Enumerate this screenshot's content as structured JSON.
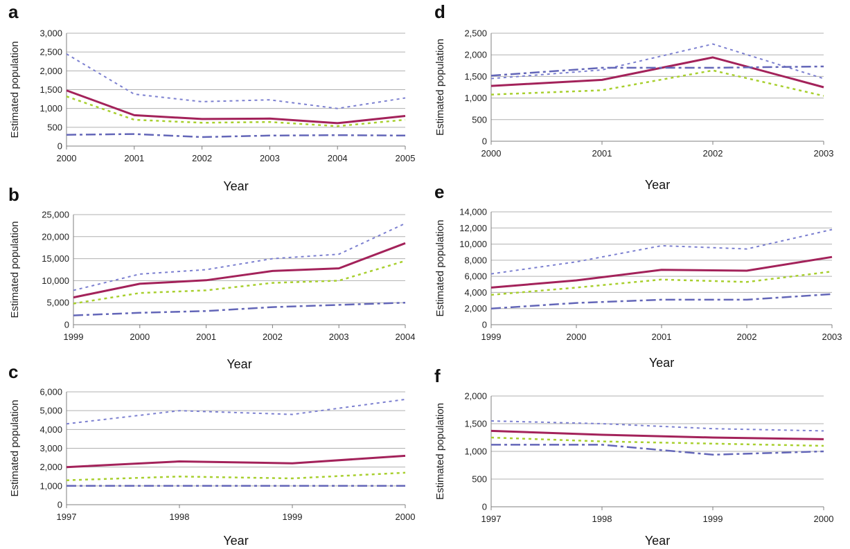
{
  "chart_data": [
    {
      "panel": "a",
      "type": "line",
      "xlabel": "Year",
      "ylabel": "Estimated population",
      "categories": [
        "2000",
        "2001",
        "2002",
        "2003",
        "2004",
        "2005"
      ],
      "ylim": [
        0,
        3000
      ],
      "yticks": [
        "0",
        "500",
        "1,000",
        "1,500",
        "2,000",
        "2,500",
        "3,000"
      ],
      "grid": true,
      "series": [
        {
          "style": "upper",
          "values": [
            2450,
            1380,
            1180,
            1230,
            1000,
            1280
          ]
        },
        {
          "style": "estimate",
          "values": [
            1480,
            820,
            720,
            730,
            610,
            800
          ]
        },
        {
          "style": "lower",
          "values": [
            1320,
            700,
            620,
            640,
            530,
            700
          ]
        },
        {
          "style": "other",
          "values": [
            300,
            320,
            240,
            280,
            290,
            280
          ]
        }
      ]
    },
    {
      "panel": "b",
      "type": "line",
      "xlabel": "Year",
      "ylabel": "Estimated population",
      "categories": [
        "1999",
        "2000",
        "2001",
        "2002",
        "2003",
        "2004"
      ],
      "ylim": [
        0,
        25000
      ],
      "yticks": [
        "0",
        "5,000",
        "10,000",
        "15,000",
        "20,000",
        "25,000"
      ],
      "grid": true,
      "series": [
        {
          "style": "upper",
          "values": [
            7800,
            11500,
            12500,
            15000,
            16000,
            23000
          ]
        },
        {
          "style": "estimate",
          "values": [
            6200,
            9300,
            10100,
            12200,
            12800,
            18500
          ]
        },
        {
          "style": "lower",
          "values": [
            4800,
            7200,
            7800,
            9500,
            10000,
            14500
          ]
        },
        {
          "style": "other",
          "values": [
            2100,
            2700,
            3100,
            4000,
            4500,
            5000
          ]
        }
      ]
    },
    {
      "panel": "c",
      "type": "line",
      "xlabel": "Year",
      "ylabel": "Estimated population",
      "categories": [
        "1997",
        "1998",
        "1999",
        "2000"
      ],
      "ylim": [
        0,
        6000
      ],
      "yticks": [
        "0",
        "1,000",
        "2,000",
        "3,000",
        "4,000",
        "5,000",
        "6,000"
      ],
      "grid": true,
      "series": [
        {
          "style": "upper",
          "values": [
            4300,
            5000,
            4800,
            5600
          ]
        },
        {
          "style": "estimate",
          "values": [
            2000,
            2300,
            2200,
            2600
          ]
        },
        {
          "style": "lower",
          "values": [
            1300,
            1500,
            1400,
            1700
          ]
        },
        {
          "style": "other",
          "values": [
            1000,
            1000,
            1000,
            1000
          ]
        }
      ]
    },
    {
      "panel": "d",
      "type": "line",
      "xlabel": "Year",
      "ylabel": "Estimated population",
      "categories": [
        "2000",
        "2001",
        "2002",
        "2003"
      ],
      "ylim": [
        0,
        2500
      ],
      "yticks": [
        "0",
        "500",
        "1,000",
        "1,500",
        "2,000",
        "2,500"
      ],
      "grid": true,
      "series": [
        {
          "style": "upper",
          "values": [
            1450,
            1650,
            2250,
            1450
          ]
        },
        {
          "style": "estimate",
          "values": [
            1280,
            1420,
            1940,
            1250
          ]
        },
        {
          "style": "lower",
          "values": [
            1080,
            1180,
            1640,
            1050
          ]
        },
        {
          "style": "other",
          "values": [
            1520,
            1700,
            1700,
            1730
          ]
        }
      ]
    },
    {
      "panel": "e",
      "type": "line",
      "xlabel": "Year",
      "ylabel": "Estimated population",
      "categories": [
        "1999",
        "2000",
        "2001",
        "2002",
        "2003"
      ],
      "ylim": [
        0,
        14000
      ],
      "yticks": [
        "0",
        "2,000",
        "4,000",
        "6,000",
        "8,000",
        "10,000",
        "12,000",
        "14,000"
      ],
      "grid": true,
      "series": [
        {
          "style": "upper",
          "values": [
            6300,
            7800,
            9800,
            9400,
            11800
          ]
        },
        {
          "style": "estimate",
          "values": [
            4600,
            5500,
            6800,
            6700,
            8400
          ]
        },
        {
          "style": "lower",
          "values": [
            3700,
            4600,
            5600,
            5300,
            6600
          ]
        },
        {
          "style": "other",
          "values": [
            2000,
            2700,
            3100,
            3100,
            3800
          ]
        }
      ]
    },
    {
      "panel": "f",
      "type": "line",
      "xlabel": "Year",
      "ylabel": "Estimated population",
      "categories": [
        "1997",
        "1998",
        "1999",
        "2000"
      ],
      "ylim": [
        0,
        2000
      ],
      "yticks": [
        "0",
        "500",
        "1,000",
        "1,500",
        "2,000"
      ],
      "grid": true,
      "series": [
        {
          "style": "upper",
          "values": [
            1550,
            1500,
            1410,
            1370
          ]
        },
        {
          "style": "estimate",
          "values": [
            1370,
            1300,
            1250,
            1220
          ]
        },
        {
          "style": "lower",
          "values": [
            1250,
            1180,
            1140,
            1100
          ]
        },
        {
          "style": "other",
          "values": [
            1120,
            1120,
            940,
            1000
          ]
        }
      ]
    }
  ],
  "line_styles": {
    "upper": {
      "color": "#7b7fd0",
      "width": 2,
      "dash": "4,5"
    },
    "estimate": {
      "color": "#a3225a",
      "width": 3,
      "dash": ""
    },
    "lower": {
      "color": "#a8cf2e",
      "width": 2.5,
      "dash": "4,5"
    },
    "other": {
      "color": "#6366b8",
      "width": 2.5,
      "dash": "14,5,4,5"
    }
  },
  "colors": {
    "grid": "#b0b0b0",
    "axis": "#7f7f7f"
  }
}
